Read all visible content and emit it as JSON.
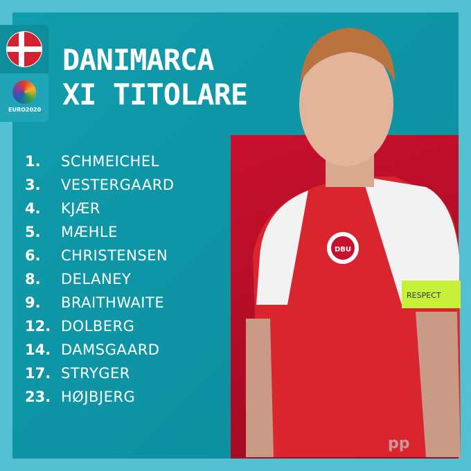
{
  "header": {
    "title_line1": "DANIMARCA",
    "title_line2": "XI TITOLARE"
  },
  "badges": {
    "flag": "denmark-flag",
    "tournament_logo": "EURO2020"
  },
  "lineup": [
    {
      "number": "1.",
      "name": "SCHMEICHEL"
    },
    {
      "number": "3.",
      "name": "VESTERGAARD"
    },
    {
      "number": "4.",
      "name": "KJÆR"
    },
    {
      "number": "5.",
      "name": "MÆHLE"
    },
    {
      "number": "6.",
      "name": "CHRISTENSEN"
    },
    {
      "number": "8.",
      "name": "DELANEY"
    },
    {
      "number": "9.",
      "name": "BRAITHWAITE"
    },
    {
      "number": "12.",
      "name": "DOLBERG"
    },
    {
      "number": "14.",
      "name": "DAMSGAARD"
    },
    {
      "number": "17.",
      "name": "STRYGER"
    },
    {
      "number": "23.",
      "name": "HØJBJERG"
    }
  ],
  "photo": {
    "armband_text": "RESPECT",
    "crest_text": "DBU"
  },
  "watermark": "pp",
  "colors": {
    "outer": "#52c0d0",
    "panel": "#109cac",
    "photo_bg": "#c8102e",
    "shirt": "#d9262e",
    "armband": "#c6f03a"
  }
}
